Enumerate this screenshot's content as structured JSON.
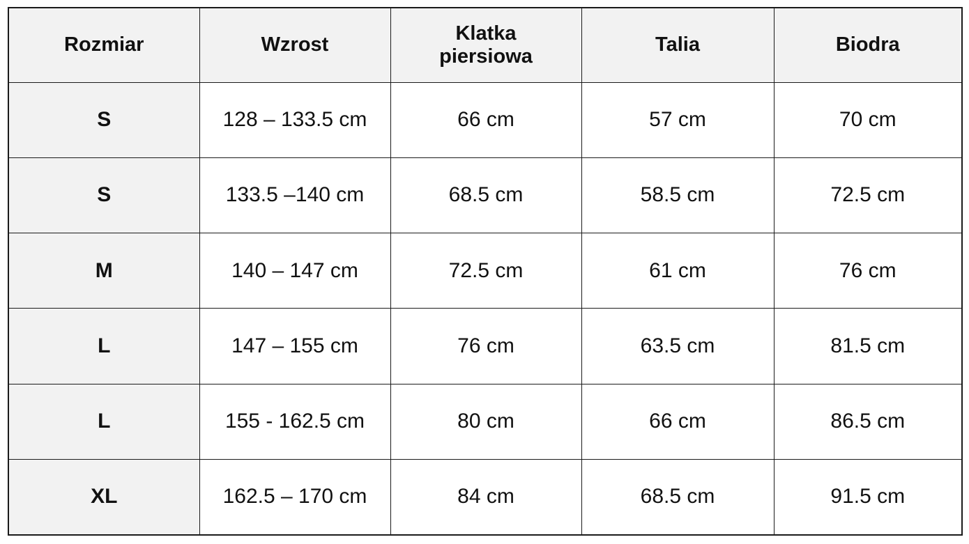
{
  "table": {
    "headers": [
      "Rozmiar",
      "Wzrost",
      "Klatka piersiowa",
      "Talia",
      "Biodra"
    ],
    "rows": [
      [
        "S",
        "128 – 133.5 cm",
        "66 cm",
        "57 cm",
        "70 cm"
      ],
      [
        "S",
        "133.5 –140 cm",
        "68.5 cm",
        "58.5 cm",
        "72.5 cm"
      ],
      [
        "M",
        "140 – 147 cm",
        "72.5 cm",
        "61 cm",
        "76 cm"
      ],
      [
        "L",
        "147 – 155 cm",
        "76 cm",
        "63.5 cm",
        "81.5 cm"
      ],
      [
        "L",
        "155 - 162.5 cm",
        "80 cm",
        "66 cm",
        "86.5 cm"
      ],
      [
        "XL",
        "162.5 – 170 cm",
        "84 cm",
        "68.5 cm",
        "91.5 cm"
      ]
    ]
  },
  "colors": {
    "header_background": "#f2f2f2",
    "first_column_background": "#f2f2f2",
    "cell_background": "#ffffff",
    "border": "#1a1a1a",
    "text": "#111111"
  }
}
